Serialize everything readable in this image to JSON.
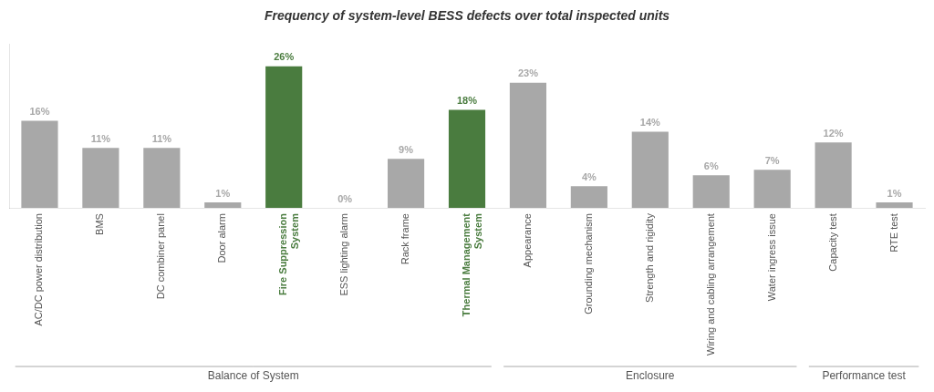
{
  "chart_data": {
    "type": "bar",
    "title": "Frequency of system-level BESS defects over total inspected units",
    "categories": [
      "AC/DC power distribution",
      "BMS",
      "DC combiner panel",
      "Door alarm",
      "Fire Suppression\nSystem",
      "ESS lighting alarm",
      "Rack frame",
      "Thermal Management\nSystem",
      "Appearance",
      "Grounding mechanism",
      "Strength and rigidity",
      "Wiring and cabling arrangement",
      "Water ingress issue",
      "Capacity test",
      "RTE test"
    ],
    "values": [
      16,
      11,
      11,
      1,
      26,
      0,
      9,
      18,
      23,
      4,
      14,
      6,
      7,
      12,
      1
    ],
    "value_labels": [
      "16%",
      "11%",
      "11%",
      "1%",
      "26%",
      "0%",
      "9%",
      "18%",
      "23%",
      "4%",
      "14%",
      "6%",
      "7%",
      "12%",
      "1%"
    ],
    "colors": [
      "#a8a8a8",
      "#a8a8a8",
      "#a8a8a8",
      "#a8a8a8",
      "#4a7c3f",
      "#a8a8a8",
      "#a8a8a8",
      "#4a7c3f",
      "#a8a8a8",
      "#a8a8a8",
      "#a8a8a8",
      "#a8a8a8",
      "#a8a8a8",
      "#a8a8a8",
      "#a8a8a8"
    ],
    "ylim": [
      0,
      30
    ],
    "grid": false,
    "data_labels": true,
    "tick_labels": "x",
    "groups": [
      {
        "label": "Balance of System",
        "first": "AC/DC power distribution",
        "last": "Thermal Management\nSystem"
      },
      {
        "label": "Enclosure",
        "first": "Appearance",
        "last": "Water ingress issue"
      },
      {
        "label": "Performance test",
        "first": "Capacity test",
        "last": "RTE test"
      }
    ]
  }
}
